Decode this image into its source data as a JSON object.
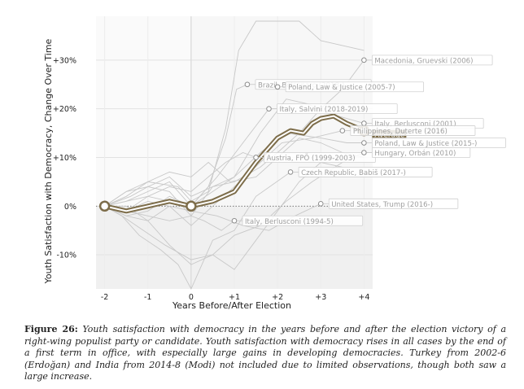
{
  "chart_data": {
    "type": "line",
    "title": "",
    "ylabel": "Youth Satisfaction with Democracy, Change Over Time",
    "xlabel": "Years Before/After Election",
    "xlim": [
      -2.2,
      4.2
    ],
    "ylim": [
      -17,
      39
    ],
    "x_ticks": [
      -2,
      -1,
      0,
      1,
      2,
      3,
      4
    ],
    "x_tick_labels": [
      "-2",
      "-1",
      "0",
      "+1",
      "+2",
      "+3",
      "+4"
    ],
    "y_ticks": [
      -10,
      0,
      10,
      20,
      30
    ],
    "y_tick_labels": [
      "-10%",
      "0%",
      "+10%",
      "+20%",
      "+30%"
    ],
    "average": {
      "name": "Average",
      "x": [
        -2,
        -1.5,
        -1,
        -0.5,
        0,
        0.5,
        1,
        1.5,
        2,
        2.3,
        2.6,
        2.8,
        3,
        3.3,
        3.6,
        4
      ],
      "y": [
        0,
        -1,
        0,
        1,
        0,
        1,
        3,
        9,
        14,
        15.5,
        15,
        17,
        18,
        18.5,
        17,
        15.5
      ]
    },
    "country_labels": [
      {
        "text": "Macedonia, Gruevski (2006)",
        "x": 4,
        "y": 30
      },
      {
        "text": "Brazil, Bolsonaro (2018-)",
        "x": 1.3,
        "y": 25
      },
      {
        "text": "Poland, Law & Justice (2005-7)",
        "x": 2,
        "y": 24.5
      },
      {
        "text": "Italy, Salvini (2018-2019)",
        "x": 1.8,
        "y": 20
      },
      {
        "text": "Italy, Berlusconi (2001)",
        "x": 4,
        "y": 17
      },
      {
        "text": "Philippines, Duterte (2016)",
        "x": 3.5,
        "y": 15.5
      },
      {
        "text": "Poland, Law & Justice (2015-)",
        "x": 4,
        "y": 13
      },
      {
        "text": "Austria, FPÖ (1999-2003)",
        "x": 1.5,
        "y": 10
      },
      {
        "text": "Hungary, Orbán (2010)",
        "x": 4,
        "y": 11
      },
      {
        "text": "Czech Republic, Babiš (2017-)",
        "x": 2.3,
        "y": 7
      },
      {
        "text": "United States, Trump (2016-)",
        "x": 3,
        "y": 0.5
      },
      {
        "text": "Italy, Berlusconi (1994-5)",
        "x": 1,
        "y": -3
      }
    ],
    "grid": true,
    "legend": "none"
  },
  "caption": {
    "label": "Figure 26:",
    "text": "Youth satisfaction with democracy in the years before and after the election victory of a right-wing populist party or candidate. Youth satisfaction with democracy rises in all cases by the end of a first term in office, with especially large gains in developing democracies. Turkey from 2002-6 (Erdoğan) and India from 2014-8 (Modi) not included due to limited observations, though both saw a large increase."
  },
  "colors": {
    "average": "#7d6d4a",
    "country_line": "#c8c8c8",
    "label_text": "#a0a0a0",
    "shade": "#f0f0f0"
  }
}
